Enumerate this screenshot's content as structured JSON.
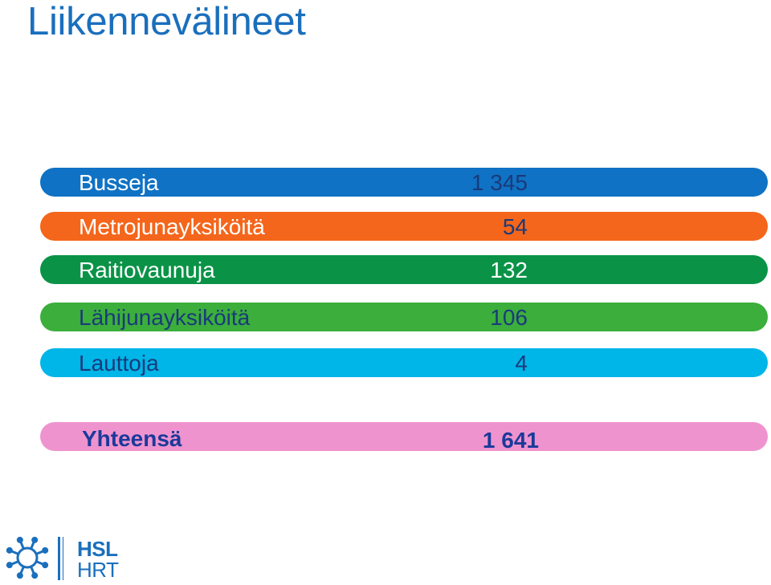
{
  "title": "Liikennevälineet",
  "rows": [
    {
      "label": "Busseja",
      "value": "1 345",
      "color": "#0f72c4",
      "text_color": "#ffffff",
      "value_color": "#1a3a7a"
    },
    {
      "label": "Metrojunayksiköitä",
      "value": "54",
      "color": "#f4661b",
      "text_color": "#ffffff",
      "value_color": "#1a3a7a"
    },
    {
      "label": "Raitiovaunuja",
      "value": "132",
      "color": "#0a9347",
      "text_color": "#ffffff",
      "value_color": "#ffffff"
    },
    {
      "label": "Lähijunayksiköitä",
      "value": "106",
      "color": "#3bae3c",
      "text_color": "#1a3a7a",
      "value_color": "#1a3a7a"
    },
    {
      "label": "Lauttoja",
      "value": "4",
      "color": "#00b5e8",
      "text_color": "#1a3a7a",
      "value_color": "#1a3a7a"
    }
  ],
  "total": {
    "label": "Yhteensä",
    "value": "1 641",
    "color": "#ef93cf",
    "text_color": "#1a3a9a"
  },
  "logo": {
    "line1": "HSL",
    "line2": "HRT",
    "color": "#1a6fbd",
    "icon": "hsl-sun-icon"
  }
}
